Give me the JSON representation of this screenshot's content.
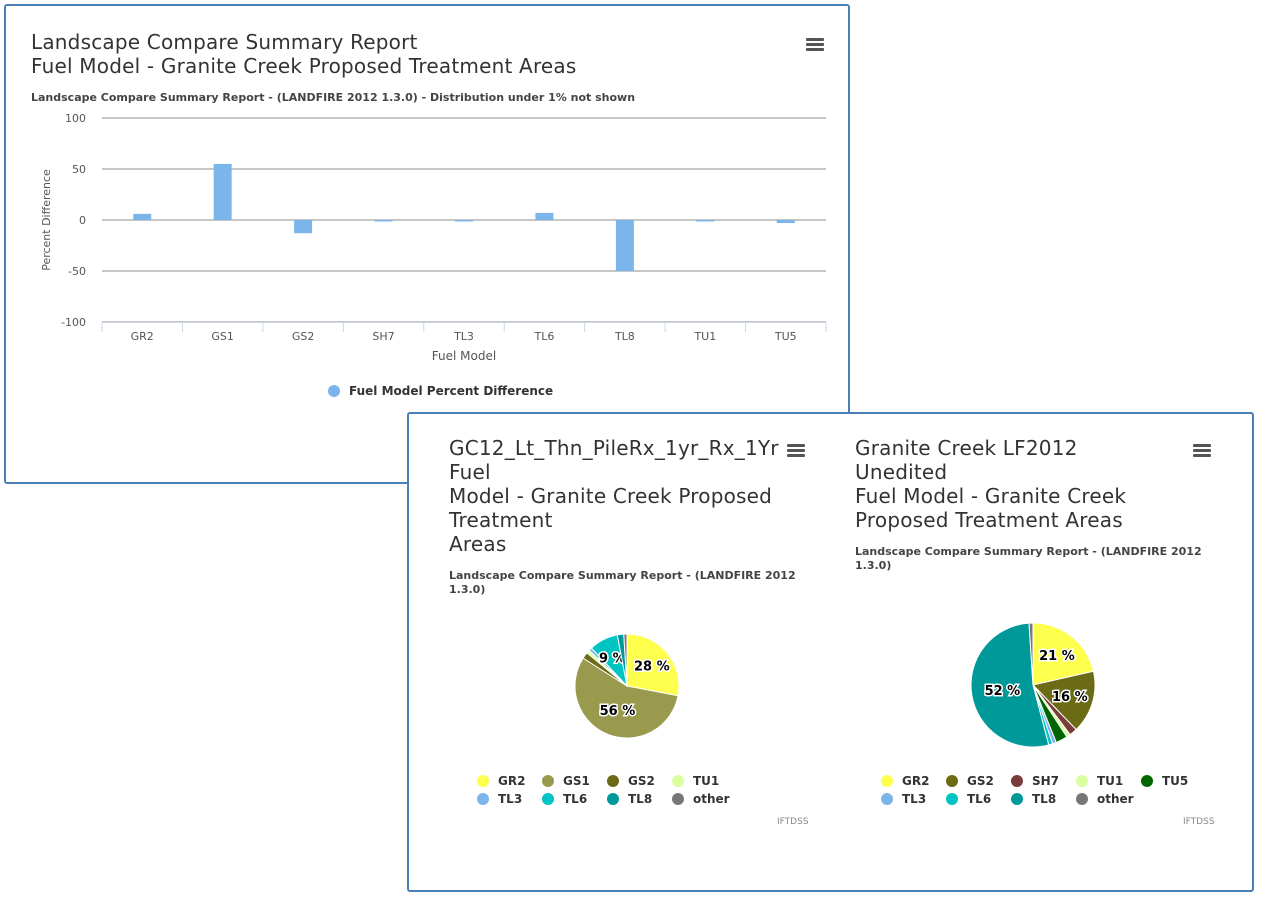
{
  "colors": {
    "bar": "#7cb5ec",
    "grid": "#8c8c8c",
    "axis": "#ccd6eb",
    "border": "#4a7fb5"
  },
  "icons": {
    "menu": "hamburger-menu-icon"
  },
  "top_chart": {
    "title_line1": "Landscape Compare Summary Report",
    "title_line2": "Fuel Model - Granite Creek Proposed Treatment Areas",
    "subtitle": "Landscape Compare Summary Report - (LANDFIRE 2012 1.3.0) - Distribution under 1% not shown",
    "legend_label": "Fuel Model Percent Difference"
  },
  "pie_left": {
    "title_lines": [
      "GC12_Lt_Thn_PileRx_1yr_Rx_1Yr",
      "Fuel",
      "Model - Granite Creek Proposed",
      "Treatment",
      "Areas"
    ],
    "subtitle_lines": [
      "Landscape Compare Summary Report - (LANDFIRE 2012",
      "1.3.0)"
    ],
    "credit": "IFTDSS"
  },
  "pie_right": {
    "title_lines": [
      "Granite Creek LF2012",
      "Unedited",
      "Fuel Model - Granite Creek",
      "Proposed Treatment Areas"
    ],
    "subtitle_lines": [
      "Landscape Compare Summary Report - (LANDFIRE 2012",
      "1.3.0)"
    ],
    "credit": "IFTDSS"
  },
  "chart_data": [
    {
      "type": "bar",
      "title": "Landscape Compare Summary Report Fuel Model - Granite Creek Proposed Treatment Areas",
      "subtitle": "Landscape Compare Summary Report - (LANDFIRE 2012 1.3.0) - Distribution under 1% not shown",
      "categories": [
        "GR2",
        "GS1",
        "GS2",
        "SH7",
        "TL3",
        "TL6",
        "TL8",
        "TU1",
        "TU5"
      ],
      "series": [
        {
          "name": "Fuel Model Percent Difference",
          "values": [
            6,
            55,
            -13,
            -1,
            0,
            7,
            -50,
            0,
            -3
          ],
          "color": "#7cb5ec"
        }
      ],
      "xlabel": "Fuel Model",
      "ylabel": "Percent Difference",
      "ylim": [
        -100,
        100
      ],
      "yticks": [
        100,
        50,
        0,
        -50,
        -100
      ],
      "grid": true,
      "legend": "bottom-center"
    },
    {
      "type": "pie",
      "title": "GC12_Lt_Thn_PileRx_1yr_Rx_1Yr Fuel Model - Granite Creek Proposed Treatment Areas",
      "subtitle": "Landscape Compare Summary Report - (LANDFIRE 2012 1.3.0)",
      "slices": [
        {
          "name": "GR2",
          "value": 28,
          "color": "#ffff4d",
          "label": "28 %"
        },
        {
          "name": "GS1",
          "value": 56,
          "color": "#9a9a4f",
          "label": "56 %"
        },
        {
          "name": "GS2",
          "value": 2,
          "color": "#6b6b16",
          "label": ""
        },
        {
          "name": "TU1",
          "value": 1,
          "color": "#dcff9e",
          "label": ""
        },
        {
          "name": "TL3",
          "value": 1,
          "color": "#7cb5ec",
          "label": ""
        },
        {
          "name": "TL6",
          "value": 9,
          "color": "#00c3c3",
          "label": "9 %"
        },
        {
          "name": "TL8",
          "value": 2,
          "color": "#009999",
          "label": ""
        },
        {
          "name": "other",
          "value": 1,
          "color": "#777777",
          "label": ""
        }
      ],
      "legend": "bottom"
    },
    {
      "type": "pie",
      "title": "Granite Creek LF2012 Unedited Fuel Model - Granite Creek Proposed Treatment Areas",
      "subtitle": "Landscape Compare Summary Report - (LANDFIRE 2012 1.3.0)",
      "slices": [
        {
          "name": "GR2",
          "value": 21,
          "color": "#ffff4d",
          "label": "21 %"
        },
        {
          "name": "GS2",
          "value": 16,
          "color": "#6b6b16",
          "label": "16 %"
        },
        {
          "name": "SH7",
          "value": 2,
          "color": "#7a3b3b",
          "label": ""
        },
        {
          "name": "TU1",
          "value": 1,
          "color": "#dcff9e",
          "label": ""
        },
        {
          "name": "TU5",
          "value": 3,
          "color": "#006400",
          "label": ""
        },
        {
          "name": "TL3",
          "value": 1,
          "color": "#7cb5ec",
          "label": ""
        },
        {
          "name": "TL6",
          "value": 1,
          "color": "#00c3c3",
          "label": ""
        },
        {
          "name": "TL8",
          "value": 52,
          "color": "#009999",
          "label": "52 %"
        },
        {
          "name": "other",
          "value": 1,
          "color": "#777777",
          "label": ""
        }
      ],
      "legend": "bottom"
    }
  ]
}
